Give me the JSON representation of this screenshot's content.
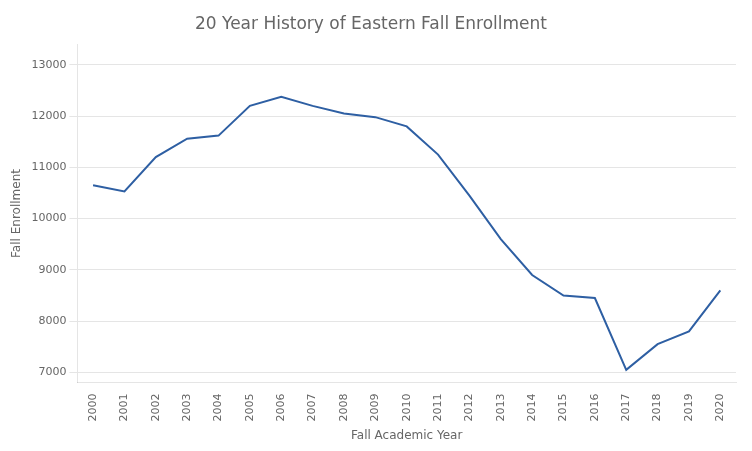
{
  "chart_data": {
    "type": "line",
    "title": "20 Year History of Eastern Fall Enrollment",
    "xlabel": "Fall Academic Year",
    "ylabel": "Fall Enrollment",
    "x": [
      2000,
      2001,
      2002,
      2003,
      2004,
      2005,
      2006,
      2007,
      2008,
      2009,
      2010,
      2011,
      2012,
      2013,
      2014,
      2015,
      2016,
      2017,
      2018,
      2019,
      2020
    ],
    "values": [
      10650,
      10530,
      11200,
      11560,
      11620,
      12200,
      12380,
      12200,
      12050,
      11980,
      11800,
      11250,
      10450,
      9600,
      8900,
      8500,
      8450,
      7050,
      7550,
      7800,
      8600
    ],
    "color": "#2E5FA3",
    "xlim": [
      1999.5,
      2020.5
    ],
    "xticks": [
      2000,
      2001,
      2002,
      2003,
      2004,
      2005,
      2006,
      2007,
      2008,
      2009,
      2010,
      2011,
      2012,
      2013,
      2014,
      2015,
      2016,
      2017,
      2018,
      2019,
      2020
    ],
    "ylim": [
      6800,
      13400
    ],
    "yticks": [
      7000,
      8000,
      9000,
      10000,
      11000,
      12000,
      13000
    ],
    "grid": "y"
  }
}
